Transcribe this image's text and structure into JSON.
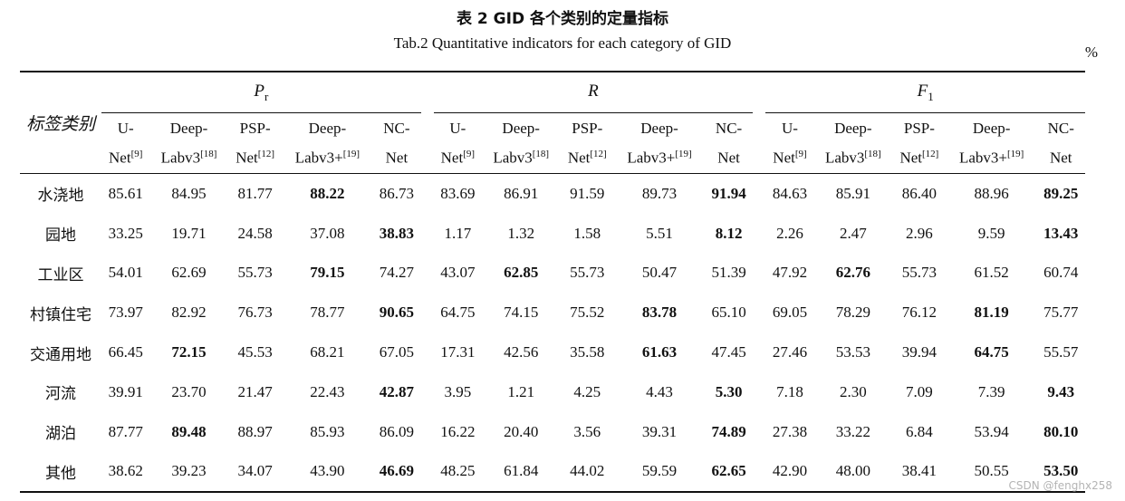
{
  "caption": {
    "cn": "表 2   GID 各个类别的定量指标",
    "en": "Tab.2    Quantitative indicators for each category of GID",
    "unit": "%"
  },
  "table": {
    "label_header": "标签类别",
    "groups": [
      {
        "symbol": "P",
        "subscript": "r"
      },
      {
        "symbol": "R",
        "subscript": ""
      },
      {
        "symbol": "F",
        "subscript": "1"
      }
    ],
    "models": [
      {
        "l1": "U-",
        "l2": "Net",
        "ref": "[9]"
      },
      {
        "l1": "Deep-",
        "l2": "Labv3",
        "ref": "[18]"
      },
      {
        "l1": "PSP-",
        "l2": "Net",
        "ref": "[12]"
      },
      {
        "l1": "Deep-",
        "l2": "Labv3+",
        "ref": "[19]"
      },
      {
        "l1": "NC-",
        "l2": "Net",
        "ref": ""
      }
    ],
    "rows": [
      {
        "label": "水浇地",
        "values": [
          "85.61",
          "84.95",
          "81.77",
          "88.22",
          "86.73",
          "83.69",
          "86.91",
          "91.59",
          "89.73",
          "91.94",
          "84.63",
          "85.91",
          "86.40",
          "88.96",
          "89.25"
        ],
        "bold": [
          3,
          9,
          14
        ]
      },
      {
        "label": "园地",
        "values": [
          "33.25",
          "19.71",
          "24.58",
          "37.08",
          "38.83",
          "1.17",
          "1.32",
          "1.58",
          "5.51",
          "8.12",
          "2.26",
          "2.47",
          "2.96",
          "9.59",
          "13.43"
        ],
        "bold": [
          4,
          9,
          14
        ]
      },
      {
        "label": "工业区",
        "values": [
          "54.01",
          "62.69",
          "55.73",
          "79.15",
          "74.27",
          "43.07",
          "62.85",
          "55.73",
          "50.47",
          "51.39",
          "47.92",
          "62.76",
          "55.73",
          "61.52",
          "60.74"
        ],
        "bold": [
          3,
          6,
          11
        ]
      },
      {
        "label": "村镇住宅",
        "values": [
          "73.97",
          "82.92",
          "76.73",
          "78.77",
          "90.65",
          "64.75",
          "74.15",
          "75.52",
          "83.78",
          "65.10",
          "69.05",
          "78.29",
          "76.12",
          "81.19",
          "75.77"
        ],
        "bold": [
          4,
          8,
          13
        ]
      },
      {
        "label": "交通用地",
        "values": [
          "66.45",
          "72.15",
          "45.53",
          "68.21",
          "67.05",
          "17.31",
          "42.56",
          "35.58",
          "61.63",
          "47.45",
          "27.46",
          "53.53",
          "39.94",
          "64.75",
          "55.57"
        ],
        "bold": [
          1,
          8,
          13
        ]
      },
      {
        "label": "河流",
        "values": [
          "39.91",
          "23.70",
          "21.47",
          "22.43",
          "42.87",
          "3.95",
          "1.21",
          "4.25",
          "4.43",
          "5.30",
          "7.18",
          "2.30",
          "7.09",
          "7.39",
          "9.43"
        ],
        "bold": [
          4,
          9,
          14
        ]
      },
      {
        "label": "湖泊",
        "values": [
          "87.77",
          "89.48",
          "88.97",
          "85.93",
          "86.09",
          "16.22",
          "20.40",
          "3.56",
          "39.31",
          "74.89",
          "27.38",
          "33.22",
          "6.84",
          "53.94",
          "80.10"
        ],
        "bold": [
          1,
          9,
          14
        ]
      },
      {
        "label": "其他",
        "values": [
          "38.62",
          "39.23",
          "34.07",
          "43.90",
          "46.69",
          "48.25",
          "61.84",
          "44.02",
          "59.59",
          "62.65",
          "42.90",
          "48.00",
          "38.41",
          "50.55",
          "53.50"
        ],
        "bold": [
          4,
          9,
          14
        ]
      }
    ]
  },
  "watermark": "CSDN @fenghx258"
}
